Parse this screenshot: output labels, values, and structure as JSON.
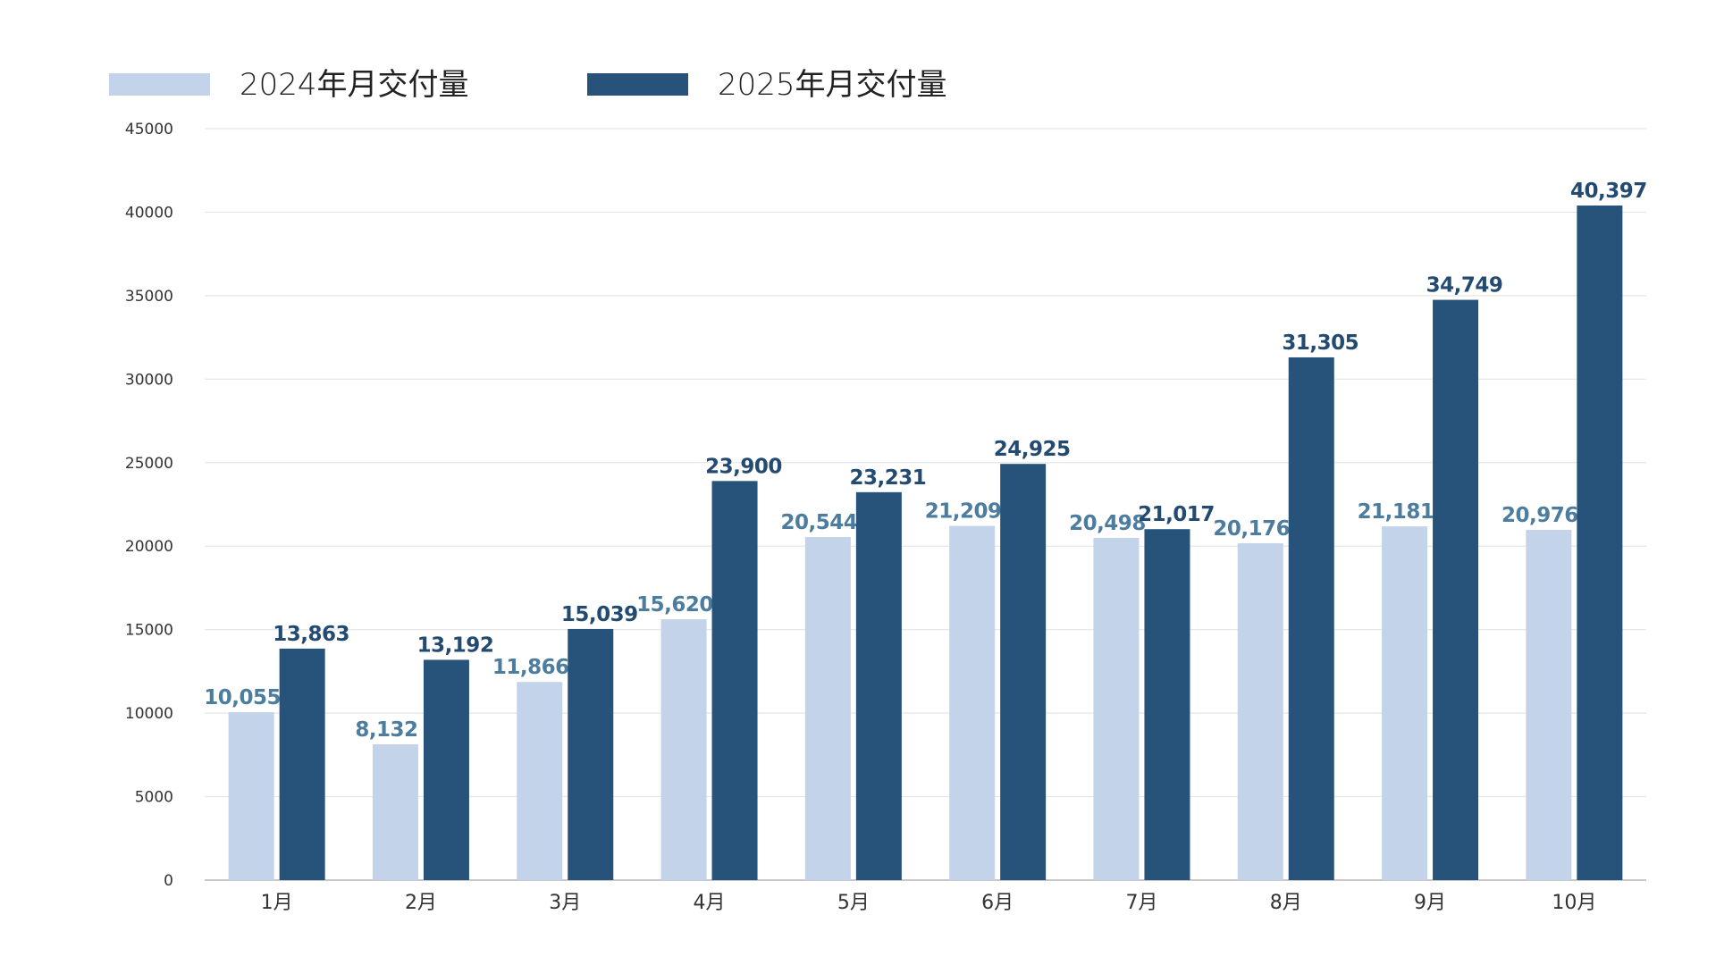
{
  "chart_data": {
    "type": "bar",
    "title": "",
    "xlabel": "",
    "ylabel": "",
    "categories": [
      "1月",
      "2月",
      "3月",
      "4月",
      "5月",
      "6月",
      "7月",
      "8月",
      "9月",
      "10月"
    ],
    "series": [
      {
        "name": "2024年月交付量",
        "color": "#c2d3ea",
        "label_color": "#4d7d9e",
        "values": [
          10055,
          8132,
          11866,
          15620,
          20544,
          21209,
          20498,
          20176,
          21181,
          20976
        ],
        "labels": [
          "10,055",
          "8,132",
          "11,866",
          "15,620",
          "20,544",
          "21,209",
          "20,498",
          "20,176",
          "21,181",
          "20,976"
        ]
      },
      {
        "name": "2025年月交付量",
        "color": "#27537a",
        "label_color": "#234a70",
        "values": [
          13863,
          13192,
          15039,
          23900,
          23231,
          24925,
          21017,
          31305,
          34749,
          40397
        ],
        "labels": [
          "13,863",
          "13,192",
          "15,039",
          "23,900",
          "23,231",
          "24,925",
          "21,017",
          "31,305",
          "34,749",
          "40,397"
        ]
      }
    ],
    "ylim": [
      0,
      45000
    ],
    "yticks": [
      0,
      5000,
      10000,
      15000,
      20000,
      25000,
      30000,
      35000,
      40000,
      45000
    ],
    "grid": true,
    "legend_position": "top-left"
  }
}
